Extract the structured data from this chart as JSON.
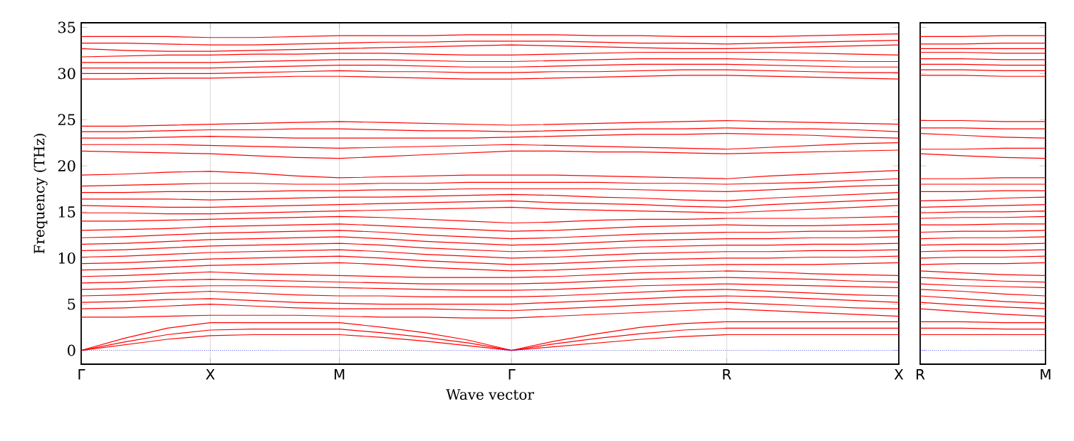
{
  "chart_data": [
    {
      "type": "line",
      "xlabel": "Wave vector",
      "ylabel": "Frequency (THz)",
      "categories": [
        "Γ",
        null,
        null,
        "X",
        null,
        null,
        "M",
        null,
        null,
        null,
        "Γ",
        null,
        null,
        null,
        null,
        "R",
        null,
        null,
        null,
        "X"
      ],
      "ylim": [
        -1.5,
        35.5
      ],
      "yticks": [
        0,
        5,
        10,
        15,
        20,
        25,
        30,
        35
      ],
      "grid": "x",
      "ref_lines": [
        {
          "axis": "y",
          "value": 0,
          "color": "#0000ff",
          "line_style": "dotted"
        }
      ],
      "series": [
        {
          "color": "#ff0000",
          "values": [
            0,
            0.6,
            1.2,
            1.6,
            1.7,
            1.7,
            1.7,
            1.4,
            1.0,
            0.5,
            0,
            0.4,
            0.8,
            1.2,
            1.5,
            1.7,
            1.7,
            1.7,
            1.7,
            1.7
          ]
        },
        {
          "color": "#ff0000",
          "values": [
            0,
            0.9,
            1.7,
            2.2,
            2.3,
            2.3,
            2.3,
            1.9,
            1.4,
            0.8,
            0,
            0.7,
            1.3,
            1.8,
            2.2,
            2.4,
            2.4,
            2.4,
            2.4,
            2.4
          ]
        },
        {
          "color": "#ff0000",
          "values": [
            0,
            1.3,
            2.4,
            3.0,
            3.0,
            3.0,
            3.0,
            2.5,
            1.9,
            1.1,
            0,
            1.0,
            1.8,
            2.5,
            2.9,
            3.1,
            3.1,
            3.1,
            3.1,
            3.1
          ]
        },
        {
          "color": "#ff0000",
          "values": [
            3.6,
            3.6,
            3.7,
            3.8,
            3.8,
            3.8,
            3.7,
            3.6,
            3.6,
            3.5,
            3.5,
            3.7,
            3.9,
            4.1,
            4.3,
            4.5,
            4.3,
            4.1,
            3.9,
            3.7
          ]
        },
        {
          "color": "#ff0000",
          "values": [
            4.5,
            4.6,
            4.8,
            5.0,
            4.8,
            4.6,
            4.5,
            4.5,
            4.5,
            4.4,
            4.3,
            4.5,
            4.7,
            4.9,
            5.1,
            5.2,
            5.0,
            4.8,
            4.6,
            4.5
          ]
        },
        {
          "color": "#ff0000",
          "values": [
            5.2,
            5.3,
            5.5,
            5.6,
            5.4,
            5.2,
            5.1,
            5.0,
            5.0,
            5.0,
            5.0,
            5.2,
            5.4,
            5.6,
            5.8,
            5.9,
            5.8,
            5.6,
            5.4,
            5.2
          ]
        },
        {
          "color": "#ff0000",
          "values": [
            5.9,
            6.0,
            6.2,
            6.4,
            6.2,
            6.0,
            5.9,
            5.9,
            5.8,
            5.8,
            5.8,
            5.9,
            6.1,
            6.3,
            6.5,
            6.6,
            6.4,
            6.2,
            6.0,
            5.9
          ]
        },
        {
          "color": "#ff0000",
          "values": [
            6.6,
            6.7,
            6.9,
            7.0,
            7.0,
            6.9,
            6.8,
            6.7,
            6.6,
            6.5,
            6.5,
            6.6,
            6.8,
            7.0,
            7.1,
            7.2,
            7.1,
            7.0,
            6.9,
            6.8
          ]
        },
        {
          "color": "#ff0000",
          "values": [
            7.3,
            7.4,
            7.6,
            7.7,
            7.6,
            7.5,
            7.4,
            7.3,
            7.2,
            7.2,
            7.2,
            7.3,
            7.5,
            7.7,
            7.8,
            7.9,
            7.8,
            7.7,
            7.5,
            7.4
          ]
        },
        {
          "color": "#ff0000",
          "values": [
            8.0,
            8.1,
            8.3,
            8.5,
            8.3,
            8.2,
            8.1,
            8.0,
            7.9,
            7.9,
            7.9,
            8.0,
            8.2,
            8.4,
            8.5,
            8.6,
            8.5,
            8.3,
            8.2,
            8.1
          ]
        },
        {
          "color": "#ff0000",
          "values": [
            8.7,
            8.8,
            9.0,
            9.2,
            9.3,
            9.4,
            9.5,
            9.3,
            9.0,
            8.8,
            8.6,
            8.7,
            8.9,
            9.1,
            9.2,
            9.3,
            9.3,
            9.3,
            9.4,
            9.5
          ]
        },
        {
          "color": "#ff0000",
          "values": [
            9.4,
            9.5,
            9.7,
            9.9,
            10.0,
            10.1,
            10.2,
            10.0,
            9.7,
            9.5,
            9.3,
            9.4,
            9.6,
            9.8,
            9.9,
            10.0,
            10.0,
            10.1,
            10.1,
            10.2
          ]
        },
        {
          "color": "#ff0000",
          "values": [
            10.1,
            10.2,
            10.4,
            10.6,
            10.7,
            10.8,
            10.9,
            10.7,
            10.4,
            10.2,
            10.0,
            10.1,
            10.3,
            10.5,
            10.6,
            10.7,
            10.7,
            10.8,
            10.8,
            10.9
          ]
        },
        {
          "color": "#ff0000",
          "values": [
            10.8,
            10.9,
            11.1,
            11.3,
            11.4,
            11.5,
            11.6,
            11.4,
            11.1,
            10.9,
            10.7,
            10.8,
            11.0,
            11.2,
            11.3,
            11.4,
            11.4,
            11.5,
            11.5,
            11.6
          ]
        },
        {
          "color": "#ff0000",
          "values": [
            11.5,
            11.6,
            11.8,
            12.0,
            12.1,
            12.2,
            12.3,
            12.1,
            11.8,
            11.6,
            11.4,
            11.5,
            11.7,
            11.9,
            12.0,
            12.1,
            12.1,
            12.2,
            12.2,
            12.3
          ]
        },
        {
          "color": "#ff0000",
          "values": [
            12.2,
            12.3,
            12.5,
            12.7,
            12.8,
            12.9,
            13.0,
            12.8,
            12.5,
            12.3,
            12.1,
            12.2,
            12.4,
            12.6,
            12.7,
            12.8,
            12.8,
            12.9,
            12.9,
            13.0
          ]
        },
        {
          "color": "#ff0000",
          "values": [
            13.0,
            13.1,
            13.2,
            13.4,
            13.5,
            13.6,
            13.7,
            13.5,
            13.3,
            13.1,
            12.9,
            13.0,
            13.2,
            13.4,
            13.5,
            13.6,
            13.5,
            13.5,
            13.6,
            13.7
          ]
        },
        {
          "color": "#ff0000",
          "values": [
            14.0,
            14.0,
            14.1,
            14.2,
            14.3,
            14.4,
            14.5,
            14.4,
            14.2,
            14.0,
            13.8,
            13.9,
            14.1,
            14.2,
            14.2,
            14.3,
            14.3,
            14.3,
            14.4,
            14.5
          ]
        },
        {
          "color": "#ff0000",
          "values": [
            14.9,
            14.9,
            14.8,
            14.8,
            14.9,
            15.0,
            15.1,
            15.2,
            15.3,
            15.4,
            15.5,
            15.3,
            15.2,
            15.1,
            15.0,
            14.9,
            15.1,
            15.3,
            15.5,
            15.7
          ]
        },
        {
          "color": "#ff0000",
          "values": [
            15.7,
            15.6,
            15.5,
            15.5,
            15.6,
            15.7,
            15.8,
            15.9,
            16.0,
            16.1,
            16.2,
            16.0,
            15.9,
            15.8,
            15.6,
            15.5,
            15.8,
            16.0,
            16.2,
            16.4
          ]
        },
        {
          "color": "#ff0000",
          "values": [
            16.4,
            16.4,
            16.4,
            16.3,
            16.4,
            16.5,
            16.6,
            16.6,
            16.7,
            16.8,
            16.9,
            16.8,
            16.6,
            16.5,
            16.3,
            16.2,
            16.5,
            16.7,
            16.9,
            17.1
          ]
        },
        {
          "color": "#ff0000",
          "values": [
            17.1,
            17.1,
            17.2,
            17.2,
            17.2,
            17.3,
            17.3,
            17.4,
            17.4,
            17.5,
            17.5,
            17.5,
            17.5,
            17.4,
            17.3,
            17.2,
            17.4,
            17.6,
            17.8,
            17.9
          ]
        },
        {
          "color": "#ff0000",
          "values": [
            17.8,
            17.9,
            18.0,
            18.1,
            18.1,
            18.0,
            18.0,
            18.1,
            18.1,
            18.2,
            18.2,
            18.2,
            18.2,
            18.1,
            18.1,
            18.0,
            18.1,
            18.2,
            18.4,
            18.6
          ]
        },
        {
          "color": "#ff0000",
          "values": [
            19.0,
            19.1,
            19.3,
            19.4,
            19.2,
            18.9,
            18.7,
            18.8,
            18.9,
            19.0,
            19.0,
            19.0,
            18.9,
            18.8,
            18.7,
            18.6,
            18.9,
            19.1,
            19.3,
            19.5
          ]
        },
        {
          "color": "#ff0000",
          "values": [
            21.6,
            21.5,
            21.4,
            21.3,
            21.1,
            20.9,
            20.8,
            21.0,
            21.2,
            21.4,
            21.6,
            21.6,
            21.5,
            21.5,
            21.4,
            21.3,
            21.4,
            21.5,
            21.6,
            21.7
          ]
        },
        {
          "color": "#ff0000",
          "values": [
            22.3,
            22.3,
            22.3,
            22.2,
            22.1,
            22.0,
            21.9,
            22.0,
            22.1,
            22.2,
            22.3,
            22.2,
            22.1,
            22.0,
            21.9,
            21.8,
            22.0,
            22.2,
            22.4,
            22.5
          ]
        },
        {
          "color": "#ff0000",
          "values": [
            23.0,
            23.0,
            23.1,
            23.2,
            23.1,
            23.0,
            23.0,
            23.0,
            23.0,
            23.0,
            23.1,
            23.2,
            23.3,
            23.4,
            23.4,
            23.5,
            23.4,
            23.3,
            23.1,
            23.0
          ]
        },
        {
          "color": "#ff0000",
          "values": [
            23.7,
            23.7,
            23.8,
            23.9,
            23.9,
            24.0,
            24.0,
            23.9,
            23.8,
            23.8,
            23.7,
            23.8,
            23.9,
            24.0,
            24.0,
            24.1,
            24.0,
            24.0,
            23.9,
            23.7
          ]
        },
        {
          "color": "#ff0000",
          "values": [
            24.3,
            24.3,
            24.4,
            24.5,
            24.6,
            24.7,
            24.8,
            24.7,
            24.6,
            24.5,
            24.4,
            24.5,
            24.6,
            24.7,
            24.8,
            24.9,
            24.8,
            24.7,
            24.6,
            24.5
          ]
        },
        {
          "color": "#ff0000",
          "values": [
            29.4,
            29.4,
            29.5,
            29.5,
            29.6,
            29.7,
            29.7,
            29.6,
            29.5,
            29.4,
            29.4,
            29.5,
            29.6,
            29.7,
            29.8,
            29.8,
            29.7,
            29.6,
            29.5,
            29.4
          ]
        },
        {
          "color": "#ff0000",
          "values": [
            30.0,
            30.0,
            30.0,
            30.0,
            30.1,
            30.2,
            30.3,
            30.2,
            30.2,
            30.1,
            30.1,
            30.2,
            30.2,
            30.3,
            30.4,
            30.4,
            30.3,
            30.2,
            30.1,
            30.1
          ]
        },
        {
          "color": "#ff0000",
          "values": [
            30.6,
            30.6,
            30.6,
            30.6,
            30.7,
            30.8,
            30.9,
            30.9,
            30.8,
            30.7,
            30.7,
            30.8,
            30.9,
            31.0,
            31.0,
            31.0,
            30.9,
            30.8,
            30.7,
            30.7
          ]
        },
        {
          "color": "#ff0000",
          "values": [
            31.2,
            31.2,
            31.2,
            31.2,
            31.3,
            31.4,
            31.5,
            31.5,
            31.4,
            31.3,
            31.3,
            31.4,
            31.5,
            31.6,
            31.6,
            31.6,
            31.5,
            31.4,
            31.3,
            31.3
          ]
        },
        {
          "color": "#ff0000",
          "values": [
            31.8,
            31.9,
            32.0,
            32.0,
            32.1,
            32.1,
            32.2,
            32.2,
            32.1,
            32.0,
            32.0,
            32.1,
            32.2,
            32.3,
            32.3,
            32.3,
            32.3,
            32.2,
            32.1,
            32.0
          ]
        },
        {
          "color": "#ff0000",
          "values": [
            32.7,
            32.5,
            32.4,
            32.4,
            32.5,
            32.6,
            32.7,
            32.8,
            32.9,
            33.0,
            33.1,
            33.0,
            32.9,
            32.8,
            32.7,
            32.7,
            32.8,
            32.9,
            33.0,
            33.1
          ]
        },
        {
          "color": "#ff0000",
          "values": [
            33.3,
            33.3,
            33.2,
            33.1,
            33.1,
            33.2,
            33.3,
            33.4,
            33.4,
            33.5,
            33.5,
            33.5,
            33.4,
            33.3,
            33.3,
            33.2,
            33.3,
            33.4,
            33.5,
            33.6
          ]
        },
        {
          "color": "#ff0000",
          "values": [
            34.0,
            34.0,
            34.0,
            33.9,
            33.9,
            34.0,
            34.1,
            34.1,
            34.1,
            34.2,
            34.2,
            34.2,
            34.1,
            34.1,
            34.0,
            34.0,
            34.0,
            34.1,
            34.2,
            34.3
          ]
        }
      ]
    },
    {
      "type": "line",
      "categories": [
        "R",
        null,
        null,
        "M"
      ],
      "ylim": [
        -1.5,
        35.5
      ],
      "yticks": [
        0,
        5,
        10,
        15,
        20,
        25,
        30,
        35
      ],
      "tick_labels": "x",
      "ref_lines": [
        {
          "axis": "y",
          "value": 0,
          "color": "#0000ff",
          "line_style": "dotted"
        }
      ],
      "series": [
        {
          "color": "#ff0000",
          "values": [
            1.7,
            1.7,
            1.7,
            1.7
          ]
        },
        {
          "color": "#ff0000",
          "values": [
            2.4,
            2.4,
            2.3,
            2.3
          ]
        },
        {
          "color": "#ff0000",
          "values": [
            3.1,
            3.1,
            3.0,
            3.0
          ]
        },
        {
          "color": "#ff0000",
          "values": [
            4.5,
            4.2,
            3.9,
            3.7
          ]
        },
        {
          "color": "#ff0000",
          "values": [
            5.2,
            4.9,
            4.7,
            4.5
          ]
        },
        {
          "color": "#ff0000",
          "values": [
            5.9,
            5.6,
            5.3,
            5.1
          ]
        },
        {
          "color": "#ff0000",
          "values": [
            6.6,
            6.4,
            6.1,
            5.9
          ]
        },
        {
          "color": "#ff0000",
          "values": [
            7.2,
            7.0,
            6.9,
            6.8
          ]
        },
        {
          "color": "#ff0000",
          "values": [
            7.9,
            7.7,
            7.5,
            7.4
          ]
        },
        {
          "color": "#ff0000",
          "values": [
            8.6,
            8.4,
            8.2,
            8.1
          ]
        },
        {
          "color": "#ff0000",
          "values": [
            9.3,
            9.4,
            9.4,
            9.5
          ]
        },
        {
          "color": "#ff0000",
          "values": [
            10.0,
            10.1,
            10.1,
            10.2
          ]
        },
        {
          "color": "#ff0000",
          "values": [
            10.7,
            10.8,
            10.8,
            10.9
          ]
        },
        {
          "color": "#ff0000",
          "values": [
            11.4,
            11.5,
            11.5,
            11.6
          ]
        },
        {
          "color": "#ff0000",
          "values": [
            12.1,
            12.2,
            12.2,
            12.3
          ]
        },
        {
          "color": "#ff0000",
          "values": [
            12.8,
            12.9,
            12.9,
            13.0
          ]
        },
        {
          "color": "#ff0000",
          "values": [
            13.6,
            13.6,
            13.7,
            13.7
          ]
        },
        {
          "color": "#ff0000",
          "values": [
            14.3,
            14.4,
            14.4,
            14.5
          ]
        },
        {
          "color": "#ff0000",
          "values": [
            14.9,
            15.0,
            15.0,
            15.1
          ]
        },
        {
          "color": "#ff0000",
          "values": [
            15.5,
            15.6,
            15.7,
            15.8
          ]
        },
        {
          "color": "#ff0000",
          "values": [
            16.2,
            16.3,
            16.5,
            16.6
          ]
        },
        {
          "color": "#ff0000",
          "values": [
            17.2,
            17.2,
            17.3,
            17.3
          ]
        },
        {
          "color": "#ff0000",
          "values": [
            18.0,
            18.0,
            18.0,
            18.0
          ]
        },
        {
          "color": "#ff0000",
          "values": [
            18.6,
            18.6,
            18.7,
            18.7
          ]
        },
        {
          "color": "#ff0000",
          "values": [
            21.3,
            21.1,
            20.9,
            20.8
          ]
        },
        {
          "color": "#ff0000",
          "values": [
            21.8,
            21.8,
            21.9,
            21.9
          ]
        },
        {
          "color": "#ff0000",
          "values": [
            23.5,
            23.3,
            23.1,
            23.0
          ]
        },
        {
          "color": "#ff0000",
          "values": [
            24.1,
            24.1,
            24.0,
            24.0
          ]
        },
        {
          "color": "#ff0000",
          "values": [
            24.9,
            24.9,
            24.8,
            24.8
          ]
        },
        {
          "color": "#ff0000",
          "values": [
            29.8,
            29.8,
            29.7,
            29.7
          ]
        },
        {
          "color": "#ff0000",
          "values": [
            30.4,
            30.4,
            30.3,
            30.3
          ]
        },
        {
          "color": "#ff0000",
          "values": [
            31.0,
            31.0,
            30.9,
            30.9
          ]
        },
        {
          "color": "#ff0000",
          "values": [
            31.6,
            31.6,
            31.5,
            31.5
          ]
        },
        {
          "color": "#ff0000",
          "values": [
            32.3,
            32.3,
            32.2,
            32.2
          ]
        },
        {
          "color": "#ff0000",
          "values": [
            32.7,
            32.7,
            32.7,
            32.7
          ]
        },
        {
          "color": "#ff0000",
          "values": [
            33.2,
            33.2,
            33.3,
            33.3
          ]
        },
        {
          "color": "#ff0000",
          "values": [
            34.0,
            34.0,
            34.1,
            34.1
          ]
        }
      ]
    }
  ]
}
